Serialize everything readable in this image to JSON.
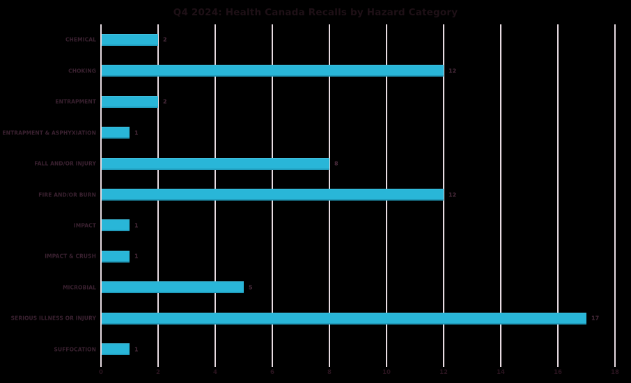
{
  "title": "Q4 2024: Health Canada Recalls by Hazard Category",
  "chart_data": {
    "type": "bar",
    "orientation": "horizontal",
    "title": "Q4 2024: Health Canada Recalls by Hazard Category",
    "categories": [
      "CHEMICAL",
      "CHOKING",
      "ENTRAPMENT",
      "ENTRAPMENT & ASPHYXIATION",
      "FALL AND/OR INJURY",
      "FIRE AND/OR BURN",
      "IMPACT",
      "IMPACT & CRUSH",
      "MICROBIAL",
      "SERIOUS ILLNESS OR INJURY",
      "SUFFOCATION"
    ],
    "values": [
      2,
      12,
      2,
      1,
      8,
      12,
      1,
      1,
      5,
      17,
      1
    ],
    "value_labels": [
      "2",
      "12",
      "2",
      "1",
      "8",
      "12",
      "1",
      "1",
      "5",
      "17",
      "1"
    ],
    "xlabel": "",
    "ylabel": "",
    "xlim": [
      0,
      18
    ],
    "x_ticks": [
      0,
      2,
      4,
      6,
      8,
      10,
      12,
      14,
      16,
      18
    ],
    "grid": true,
    "legend": false,
    "colors": {
      "background": "#000000",
      "bar": "#29b6d8",
      "gridline": "#e8dce2",
      "title_text": "#1e1016",
      "category_label_text": "#3a2130",
      "value_label_text": "#4a2b3c",
      "tick_label_text": "#2a141f"
    }
  }
}
